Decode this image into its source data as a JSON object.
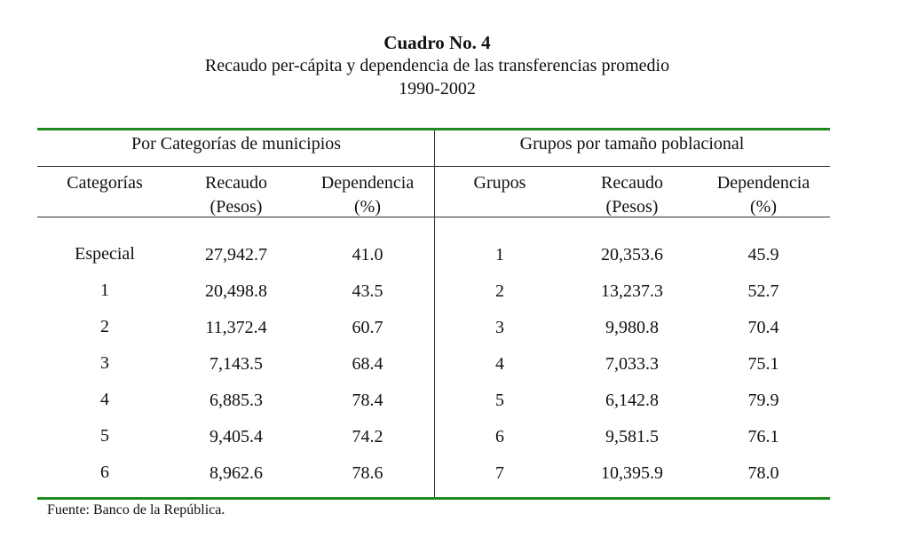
{
  "title": "Cuadro No. 4",
  "subtitle": "Recaudo per-cápita y dependencia de las transferencias promedio",
  "period": "1990-2002",
  "left_group": {
    "header": "Por Categorías de municipios",
    "columns": [
      {
        "line1": "Categorías",
        "line2": ""
      },
      {
        "line1": "Recaudo",
        "line2": "(Pesos)"
      },
      {
        "line1": "Dependencia",
        "line2": "(%)"
      }
    ],
    "rows": [
      [
        "Especial",
        "27,942.7",
        "41.0"
      ],
      [
        "1",
        "20,498.8",
        "43.5"
      ],
      [
        "2",
        "11,372.4",
        "60.7"
      ],
      [
        "3",
        "7,143.5",
        "68.4"
      ],
      [
        "4",
        "6,885.3",
        "78.4"
      ],
      [
        "5",
        "9,405.4",
        "74.2"
      ],
      [
        "6",
        "8,962.6",
        "78.6"
      ]
    ]
  },
  "right_group": {
    "header": "Grupos por tamaño poblacional",
    "columns": [
      {
        "line1": "Grupos",
        "line2": ""
      },
      {
        "line1": "Recaudo",
        "line2": "(Pesos)"
      },
      {
        "line1": "Dependencia",
        "line2": "(%)"
      }
    ],
    "rows": [
      [
        "1",
        "20,353.6",
        "45.9"
      ],
      [
        "2",
        "13,237.3",
        "52.7"
      ],
      [
        "3",
        "9,980.8",
        "70.4"
      ],
      [
        "4",
        "7,033.3",
        "75.1"
      ],
      [
        "5",
        "6,142.8",
        "79.9"
      ],
      [
        "6",
        "9,581.5",
        "76.1"
      ],
      [
        "7",
        "10,395.9",
        "78.0"
      ]
    ]
  },
  "source": "Fuente: Banco de la República.",
  "colors": {
    "rule_accent": "#1f8a1f",
    "rule_thin": "#333333",
    "text": "#111111"
  }
}
